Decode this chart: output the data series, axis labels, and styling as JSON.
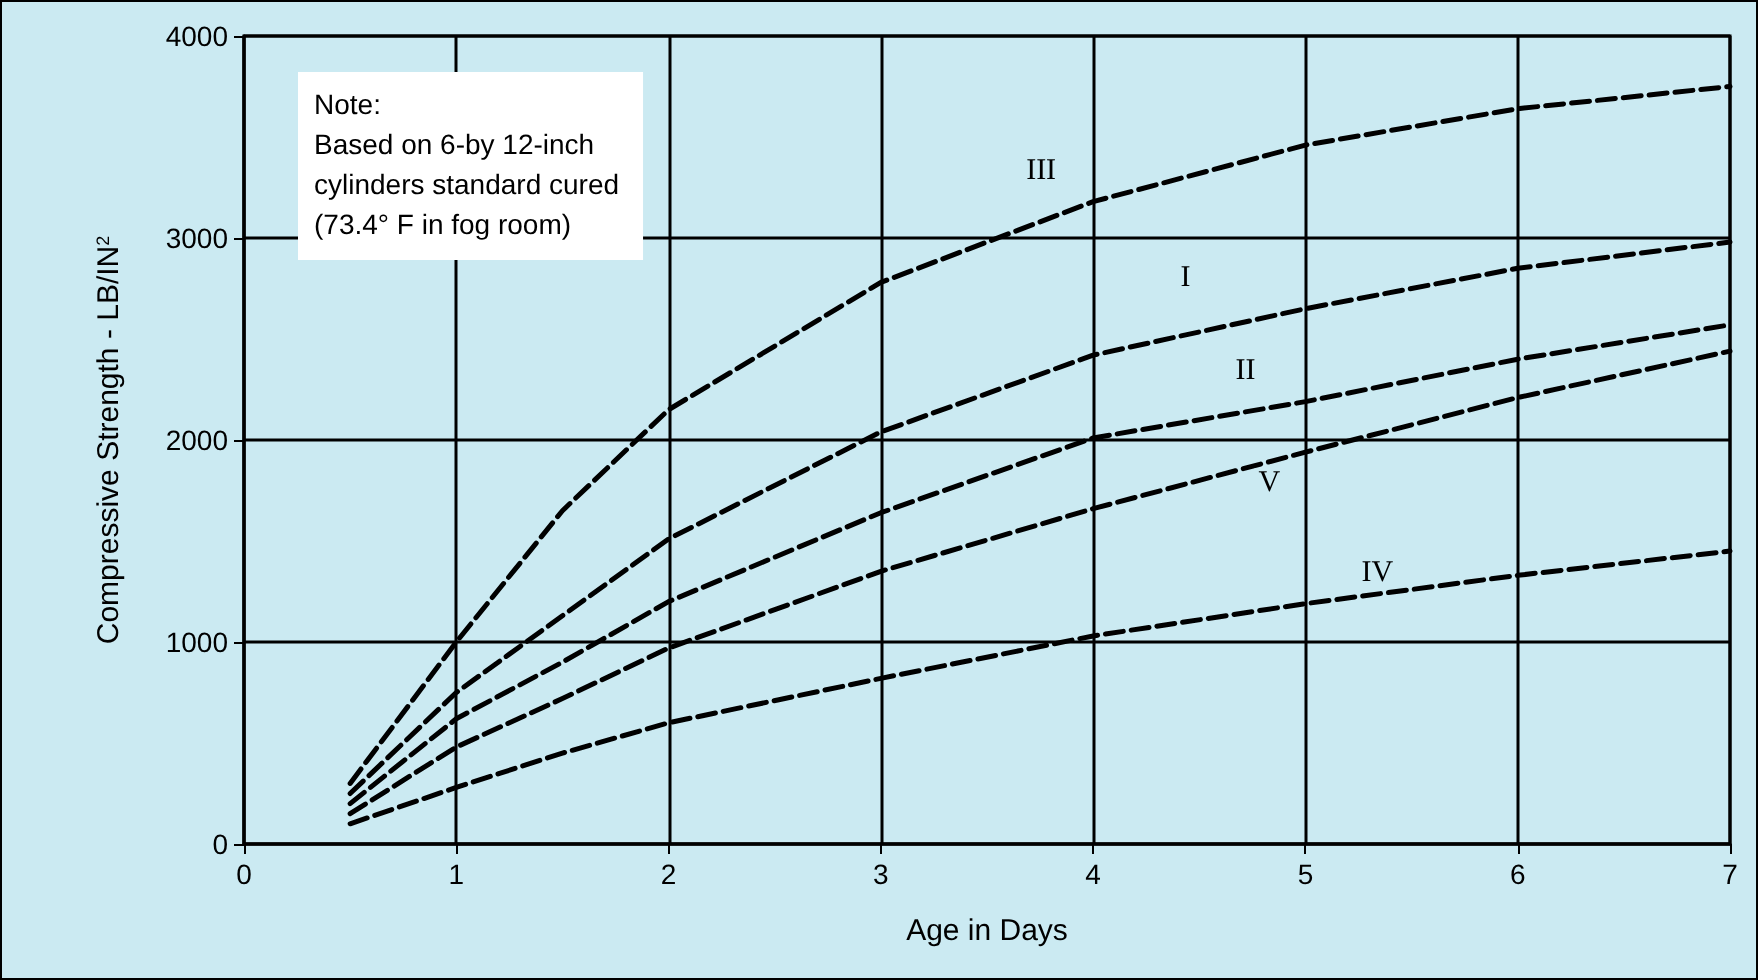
{
  "chart_data": {
    "type": "line",
    "xlabel": "Age in Days",
    "ylabel": "Compressive Strength - LB/IN$^{2}$",
    "annotations": [
      "Note:\nBased on 6-by 12-inch\ncylinders standard cured\n(73.4° F in fog room)"
    ],
    "x": [
      0.5,
      1,
      1.5,
      2,
      3,
      4,
      5,
      6,
      7
    ],
    "series": [
      {
        "name": "III",
        "color": "#000000",
        "values": [
          300,
          1000,
          1650,
          2150,
          2780,
          3180,
          3460,
          3640,
          3750
        ]
      },
      {
        "name": "I",
        "color": "#000000",
        "values": [
          250,
          750,
          1130,
          1510,
          2040,
          2420,
          2650,
          2850,
          2980
        ]
      },
      {
        "name": "II",
        "color": "#000000",
        "values": [
          200,
          620,
          900,
          1200,
          1640,
          2010,
          2190,
          2400,
          2570
        ]
      },
      {
        "name": "V",
        "color": "#000000",
        "values": [
          150,
          480,
          720,
          970,
          1350,
          1660,
          1940,
          2210,
          2440
        ]
      },
      {
        "name": "IV",
        "color": "#000000",
        "values": [
          100,
          280,
          450,
          600,
          820,
          1030,
          1190,
          1330,
          1450
        ]
      }
    ],
    "xlim": [
      0,
      7
    ],
    "xticks": [
      0,
      1,
      2,
      3,
      4,
      5,
      6,
      7
    ],
    "ylim": [
      0,
      4000
    ],
    "yticks": [
      0,
      1000,
      2000,
      3000,
      4000
    ],
    "grid": true,
    "legend": false,
    "marker": "none",
    "line_style": "dashed"
  }
}
